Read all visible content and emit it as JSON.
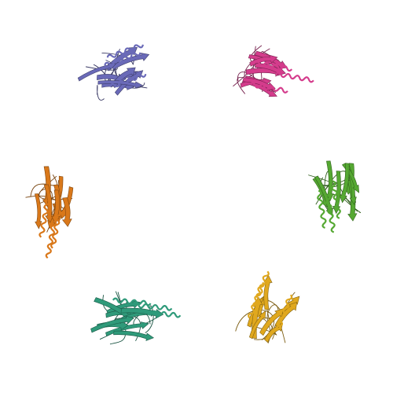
{
  "background": "#ffffff",
  "chains": [
    {
      "name": "protein-chain-blue",
      "color": "#6a6ab8"
    },
    {
      "name": "protein-chain-magenta",
      "color": "#d43c8c"
    },
    {
      "name": "protein-chain-green",
      "color": "#55a832"
    },
    {
      "name": "protein-chain-yellow",
      "color": "#e0a81e"
    },
    {
      "name": "protein-chain-teal",
      "color": "#2f9a7a"
    },
    {
      "name": "protein-chain-orange",
      "color": "#d9781a"
    }
  ]
}
